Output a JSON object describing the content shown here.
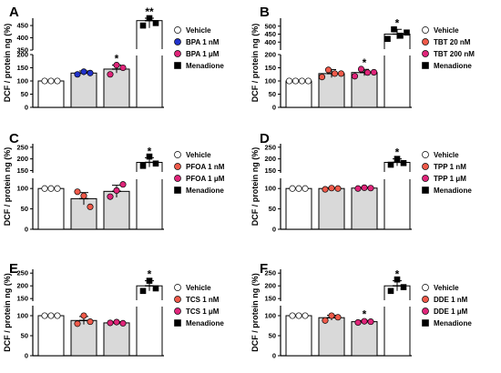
{
  "chart_data": [
    {
      "type": "bar",
      "panel": "A",
      "ylabel": "DCF / protein ng (%)",
      "categories": [
        "Vehicle",
        "BPA 1 nM",
        "BPA 1 μM",
        "Menadione"
      ],
      "values": [
        100,
        130,
        145,
        470
      ],
      "errors": [
        3,
        8,
        15,
        30
      ],
      "points": [
        [
          100,
          100,
          100
        ],
        [
          125,
          135,
          130
        ],
        [
          125,
          160,
          150
        ],
        [
          450,
          500,
          460
        ]
      ],
      "colors": [
        "#ffffff",
        "#2233cc",
        "#e0257a",
        "#000000"
      ],
      "markers": [
        "circle",
        "circle",
        "circle",
        "square"
      ],
      "significance": [
        "",
        "",
        "*",
        "**"
      ],
      "low_axis": {
        "range": [
          0,
          200
        ],
        "ticks": [
          0,
          50,
          100,
          150,
          200
        ]
      },
      "high_axis": {
        "range": [
          350,
          480
        ],
        "ticks": [
          350,
          400,
          450
        ]
      }
    },
    {
      "type": "bar",
      "panel": "B",
      "ylabel": "DCF / protein ng (%)",
      "categories": [
        "Vehicle",
        "TBT 20 nM",
        "TBT 200 nM",
        "Menadione"
      ],
      "values": [
        100,
        128,
        132,
        450
      ],
      "errors": [
        3,
        15,
        12,
        30
      ],
      "points": [
        [
          100,
          100,
          100,
          100
        ],
        [
          115,
          142,
          128,
          128
        ],
        [
          118,
          145,
          132,
          133
        ],
        [
          420,
          480,
          440,
          460
        ]
      ],
      "colors": [
        "#ffffff",
        "#f05a4a",
        "#e0257a",
        "#000000"
      ],
      "markers": [
        "circle",
        "circle",
        "circle",
        "square"
      ],
      "significance": [
        "",
        "",
        "*",
        "*"
      ],
      "low_axis": {
        "range": [
          0,
          200
        ],
        "ticks": [
          0,
          50,
          100,
          150,
          200
        ]
      },
      "high_axis": {
        "range": [
          350,
          550
        ],
        "ticks": [
          400,
          450,
          500
        ]
      }
    },
    {
      "type": "bar",
      "panel": "C",
      "ylabel": "DCF / protein ng (%)",
      "categories": [
        "Vehicle",
        "PFOA 1 nM",
        "PFOA 1 μM",
        "Menadione"
      ],
      "values": [
        100,
        75,
        93,
        185
      ],
      "errors": [
        2,
        15,
        15,
        20
      ],
      "points": [
        [
          100,
          100,
          100
        ],
        [
          92,
          82,
          55
        ],
        [
          80,
          95,
          110
        ],
        [
          170,
          210,
          180
        ]
      ],
      "colors": [
        "#ffffff",
        "#f05a4a",
        "#e0257a",
        "#000000"
      ],
      "markers": [
        "circle",
        "circle",
        "circle",
        "square"
      ],
      "significance": [
        "",
        "",
        "",
        "*"
      ],
      "low_axis": {
        "range": [
          0,
          125
        ],
        "ticks": [
          0,
          50,
          100
        ]
      },
      "high_axis": {
        "range": [
          140,
          265
        ],
        "ticks": [
          150,
          200,
          250
        ]
      }
    },
    {
      "type": "bar",
      "panel": "D",
      "ylabel": "DCF / protein ng (%)",
      "categories": [
        "Vehicle",
        "TPP 1 nM",
        "TPP 1 μM",
        "Menadione"
      ],
      "values": [
        100,
        100,
        101,
        185
      ],
      "errors": [
        1,
        2,
        2,
        15
      ],
      "points": [
        [
          100,
          100,
          100
        ],
        [
          98,
          101,
          100
        ],
        [
          100,
          102,
          101
        ],
        [
          175,
          200,
          182
        ]
      ],
      "colors": [
        "#ffffff",
        "#f05a4a",
        "#e0257a",
        "#000000"
      ],
      "markers": [
        "circle",
        "circle",
        "circle",
        "square"
      ],
      "significance": [
        "",
        "",
        "",
        "*"
      ],
      "low_axis": {
        "range": [
          0,
          125
        ],
        "ticks": [
          0,
          50,
          100
        ]
      },
      "high_axis": {
        "range": [
          140,
          265
        ],
        "ticks": [
          150,
          200,
          250
        ]
      }
    },
    {
      "type": "bar",
      "panel": "E",
      "ylabel": "DCF / protein ng (%)",
      "categories": [
        "Vehicle",
        "TCS 1 nM",
        "TCS 1 μM",
        "Menadione"
      ],
      "values": [
        100,
        88,
        82,
        200
      ],
      "errors": [
        2,
        10,
        3,
        20
      ],
      "points": [
        [
          100,
          100,
          100
        ],
        [
          80,
          100,
          85
        ],
        [
          82,
          84,
          81
        ],
        [
          180,
          220,
          190
        ]
      ],
      "colors": [
        "#ffffff",
        "#f05a4a",
        "#e0257a",
        "#000000"
      ],
      "markers": [
        "circle",
        "circle",
        "circle",
        "square"
      ],
      "significance": [
        "",
        "",
        "",
        "*"
      ],
      "low_axis": {
        "range": [
          0,
          125
        ],
        "ticks": [
          0,
          50,
          100
        ]
      },
      "high_axis": {
        "range": [
          140,
          265
        ],
        "ticks": [
          150,
          200,
          250
        ]
      }
    },
    {
      "type": "bar",
      "panel": "F",
      "ylabel": "DCF / protein ng (%)",
      "categories": [
        "Vehicle",
        "DDE 1 nM",
        "DDE 1 μM",
        "Menadione"
      ],
      "values": [
        100,
        95,
        85,
        200
      ],
      "errors": [
        2,
        6,
        3,
        20
      ],
      "points": [
        [
          100,
          100,
          100
        ],
        [
          88,
          100,
          96
        ],
        [
          83,
          86,
          85
        ],
        [
          180,
          225,
          195
        ]
      ],
      "colors": [
        "#ffffff",
        "#f05a4a",
        "#e0257a",
        "#000000"
      ],
      "markers": [
        "circle",
        "circle",
        "circle",
        "square"
      ],
      "significance": [
        "",
        "",
        "*",
        "*"
      ],
      "low_axis": {
        "range": [
          0,
          125
        ],
        "ticks": [
          0,
          50,
          100
        ]
      },
      "high_axis": {
        "range": [
          140,
          265
        ],
        "ticks": [
          150,
          200,
          250
        ]
      }
    }
  ]
}
